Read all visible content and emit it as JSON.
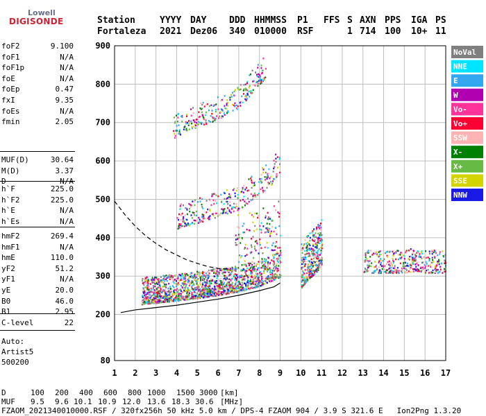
{
  "logo": {
    "top": "Lowell",
    "bottom": "DIGISONDE"
  },
  "header": {
    "labels": {
      "station": "Station",
      "yyyy": "YYYY",
      "day": "DAY",
      "ddd": "DDD",
      "hhmmss": "HHMMSS",
      "p1": "P1",
      "ffs": "FFS",
      "s": "S",
      "axn": "AXN",
      "pps": "PPS",
      "iga": "IGA",
      "ps": "PS"
    },
    "values": {
      "station": "Fortaleza",
      "yyyy": "2021",
      "day": "Dez06",
      "ddd": "340",
      "hhmmss": "010000",
      "p1": "RSF",
      "ffs": "",
      "s": "1",
      "axn": "714",
      "pps": "100",
      "iga": "10+",
      "ps": "11"
    }
  },
  "params_group1": [
    {
      "name": "foF2",
      "value": "9.100"
    },
    {
      "name": "foF1",
      "value": "N/A"
    },
    {
      "name": "foF1p",
      "value": "N/A"
    },
    {
      "name": "foE",
      "value": "N/A"
    },
    {
      "name": "foEp",
      "value": "0.47"
    },
    {
      "name": "fxI",
      "value": "9.35"
    },
    {
      "name": "foEs",
      "value": "N/A"
    },
    {
      "name": "fmin",
      "value": "2.05"
    }
  ],
  "params_group2": [
    {
      "name": "MUF(D)",
      "value": "30.64"
    },
    {
      "name": "M(D)",
      "value": "3.37"
    },
    {
      "name": "D",
      "value": "N/A"
    }
  ],
  "params_group3": [
    {
      "name": "h`F",
      "value": "225.0"
    },
    {
      "name": "h`F2",
      "value": "225.0"
    },
    {
      "name": "h`E",
      "value": "N/A"
    },
    {
      "name": "h`Es",
      "value": "N/A"
    }
  ],
  "params_group4": [
    {
      "name": "hmF2",
      "value": "269.4"
    },
    {
      "name": "hmF1",
      "value": "N/A"
    },
    {
      "name": "hmE",
      "value": "110.0"
    },
    {
      "name": "yF2",
      "value": "51.2"
    },
    {
      "name": "yF1",
      "value": "N/A"
    },
    {
      "name": "yE",
      "value": "20.0"
    },
    {
      "name": "B0",
      "value": "46.0"
    },
    {
      "name": "B1",
      "value": "2.95"
    }
  ],
  "params_group5": [
    {
      "name": "C-level",
      "value": "22"
    }
  ],
  "auto": {
    "line1": "Auto:",
    "line2": "Artist5",
    "line3": "500200"
  },
  "legend": [
    {
      "label": "NoVal",
      "color": "#7f7f7f"
    },
    {
      "label": "NNE",
      "color": "#00e5ff"
    },
    {
      "label": "E",
      "color": "#33a6f0"
    },
    {
      "label": "W",
      "color": "#b000b0"
    },
    {
      "label": "Vo-",
      "color": "#ff3399"
    },
    {
      "label": "Vo+",
      "color": "#ff0033"
    },
    {
      "label": "SSW",
      "color": "#ffb3b3"
    },
    {
      "label": "X-",
      "color": "#008000"
    },
    {
      "label": "X+",
      "color": "#66bb44"
    },
    {
      "label": "SSE",
      "color": "#d4d400"
    },
    {
      "label": "NNW",
      "color": "#1a1ae6"
    }
  ],
  "footer": {
    "d_label": "D",
    "d_values": [
      "100",
      "200",
      "400",
      "600",
      "800",
      "1000",
      "1500",
      "3000",
      "[km]"
    ],
    "muf_label": "MUF",
    "muf_values": [
      "9.5",
      "9.6",
      "10.1",
      "10.9",
      "12.0",
      "13.6",
      "18.3",
      "30.6",
      "[MHz]"
    ],
    "info": "FZAOM_2021340010000.RSF / 320fx256h 50 kHz 5.0 km / DPS-4 FZAOM 904 / 3.9 S 321.6 E   Ion2Png 1.3.20"
  },
  "chart_data": {
    "type": "scatter",
    "title": "",
    "xlabel": "",
    "ylabel": "",
    "xlim": [
      1,
      17
    ],
    "ylim": [
      80,
      900
    ],
    "x_ticks": [
      "1",
      "2",
      "3",
      "4",
      "5",
      "6",
      "7",
      "8",
      "9",
      "10",
      "11",
      "12",
      "13",
      "14",
      "15",
      "16",
      "17"
    ],
    "y_ticks": [
      "80",
      "200",
      "300",
      "400",
      "500",
      "600",
      "700",
      "800",
      "900"
    ],
    "grid": true,
    "legend_position": "right",
    "traces": [
      {
        "name": "hF_trace_main",
        "x": [
          2.3,
          3,
          4,
          5,
          6,
          7,
          7.5,
          8,
          8.5,
          9
        ],
        "y": [
          228,
          232,
          238,
          244,
          252,
          262,
          268,
          276,
          288,
          300
        ]
      },
      {
        "name": "second_hop",
        "x": [
          4,
          5,
          6,
          7,
          7.5,
          8,
          8.5,
          9
        ],
        "y": [
          450,
          465,
          482,
          500,
          520,
          540,
          560,
          600
        ]
      },
      {
        "name": "third_hop",
        "x": [
          3.8,
          4.5,
          5,
          6,
          7,
          7.5,
          8,
          8.3
        ],
        "y": [
          680,
          700,
          710,
          730,
          760,
          790,
          820,
          840
        ]
      },
      {
        "name": "es_band",
        "x": [
          10,
          10.3,
          10.7,
          11
        ],
        "y": [
          300,
          320,
          340,
          360
        ]
      },
      {
        "name": "f_band_high",
        "x": [
          13,
          13.5,
          14,
          14.5,
          15,
          15.5,
          16,
          16.5,
          17
        ],
        "y": [
          340,
          340,
          340,
          340,
          340,
          345,
          340,
          340,
          340
        ]
      }
    ],
    "profile_lines": [
      {
        "name": "solid_profile",
        "x": [
          1.3,
          2,
          3,
          4,
          5,
          6,
          7,
          8,
          8.7,
          9
        ],
        "y": [
          205,
          212,
          218,
          224,
          232,
          240,
          250,
          262,
          272,
          282
        ]
      },
      {
        "name": "dashed_profile",
        "x": [
          1,
          1.5,
          2,
          2.5,
          3,
          3.5,
          4,
          4.5,
          5,
          5.5,
          6,
          6.5
        ],
        "y": [
          495,
          460,
          430,
          405,
          385,
          368,
          355,
          342,
          333,
          325,
          320,
          318
        ]
      }
    ]
  }
}
